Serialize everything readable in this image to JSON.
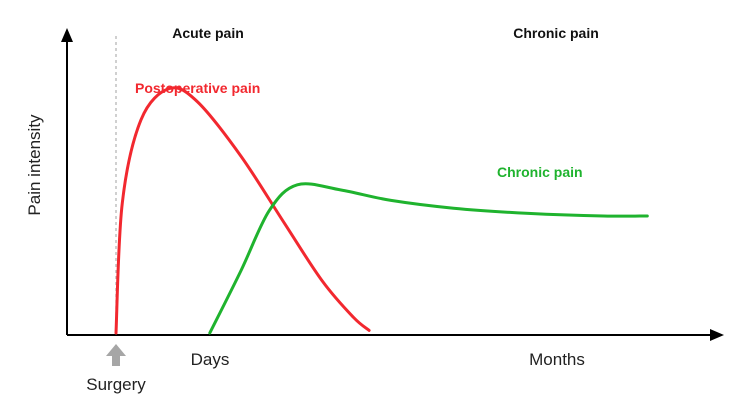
{
  "chart_data": {
    "type": "line",
    "ylabel": "Pain intensity",
    "x_tick_labels": [
      "Days",
      "Months"
    ],
    "event_marker": {
      "label": "Surgery",
      "color": "#a6a6a6"
    },
    "section_labels": [
      "Acute pain",
      "Chronic pain"
    ],
    "grid": false,
    "ylim": [
      0,
      1
    ],
    "series": [
      {
        "name": "Postoperative pain",
        "color": "#f2282f",
        "points": [
          [
            0.0,
            0.0
          ],
          [
            0.01,
            0.5
          ],
          [
            0.04,
            0.82
          ],
          [
            0.085,
            0.94
          ],
          [
            0.13,
            0.89
          ],
          [
            0.2,
            0.68
          ],
          [
            0.27,
            0.42
          ],
          [
            0.33,
            0.2
          ],
          [
            0.38,
            0.06
          ],
          [
            0.405,
            0.01
          ]
        ]
      },
      {
        "name": "Chronic pain",
        "color": "#1fb32e",
        "points": [
          [
            0.15,
            0.0
          ],
          [
            0.2,
            0.24
          ],
          [
            0.245,
            0.47
          ],
          [
            0.29,
            0.57
          ],
          [
            0.36,
            0.55
          ],
          [
            0.44,
            0.51
          ],
          [
            0.54,
            0.48
          ],
          [
            0.66,
            0.46
          ],
          [
            0.78,
            0.45
          ],
          [
            0.85,
            0.45
          ]
        ]
      }
    ]
  }
}
